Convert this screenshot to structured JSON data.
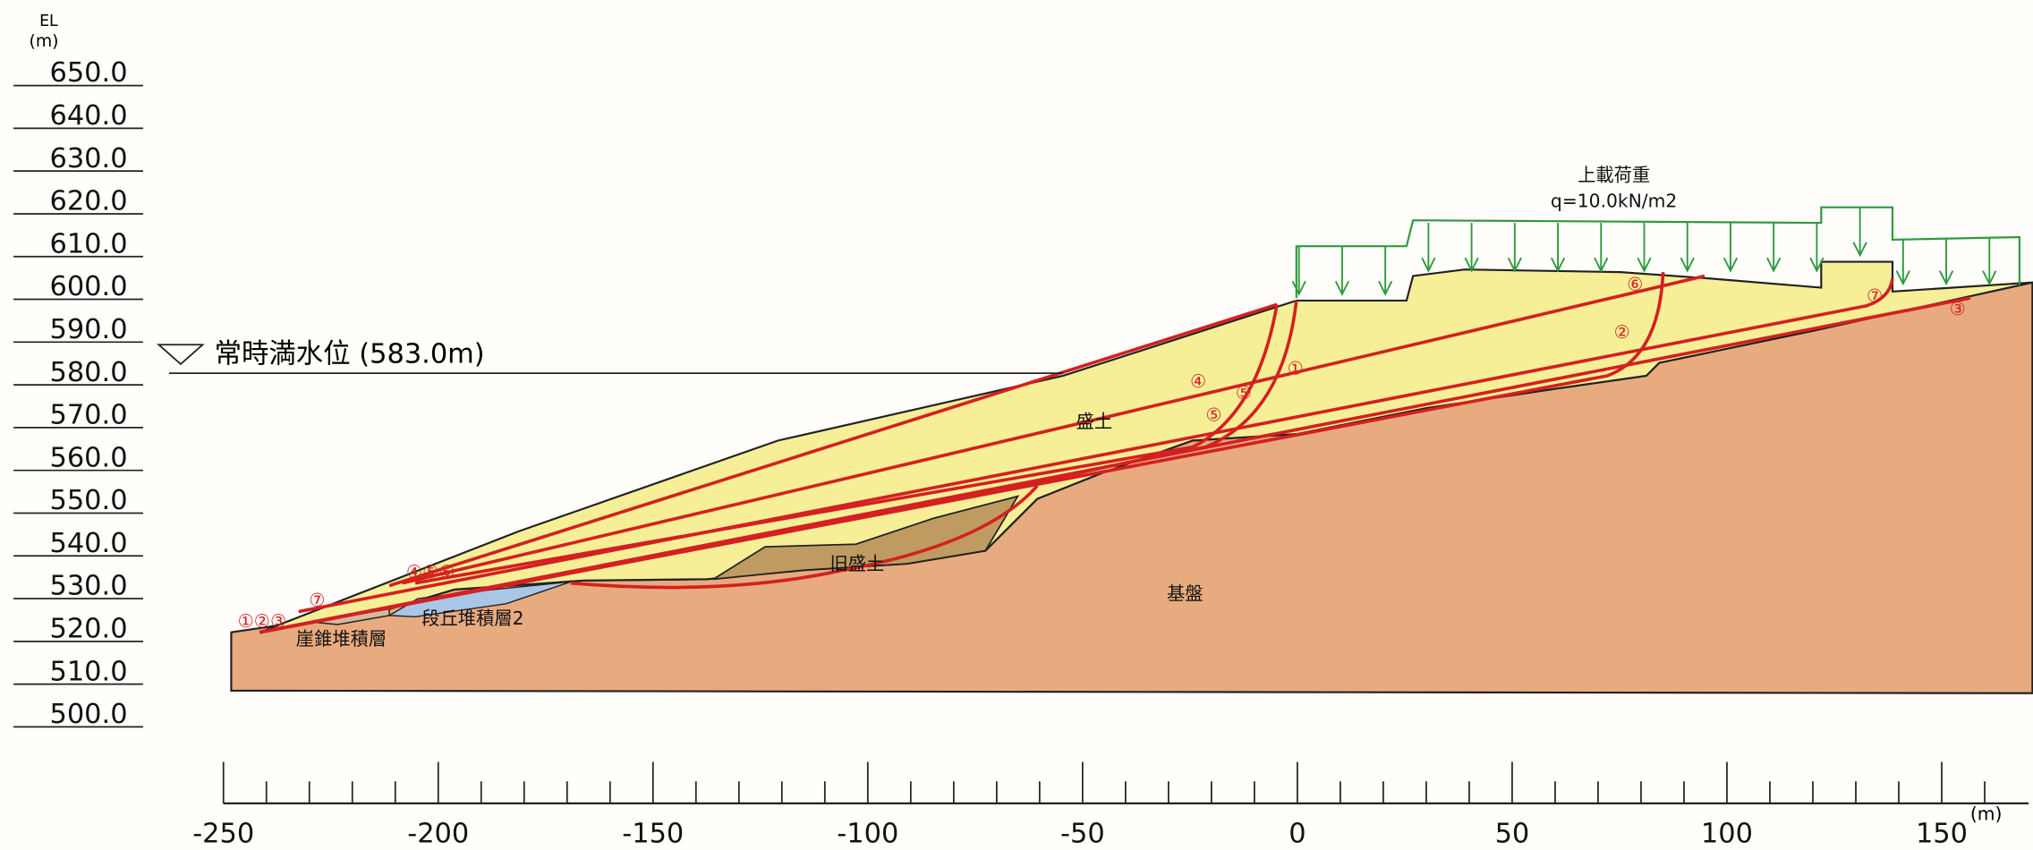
{
  "axis": {
    "y_title": "EL",
    "y_unit": "(m)",
    "y_ticks": [
      "650.0",
      "640.0",
      "630.0",
      "620.0",
      "610.0",
      "600.0",
      "590.0",
      "580.0",
      "570.0",
      "560.0",
      "550.0",
      "540.0",
      "530.0",
      "520.0",
      "510.0",
      "500.0"
    ],
    "x_ticks": [
      "-250",
      "-200",
      "-150",
      "-100",
      "-50",
      "0",
      "50",
      "100",
      "150"
    ],
    "x_unit": "(m)"
  },
  "water_level": "常時満水位 (583.0m)",
  "load": {
    "title": "上載荷重",
    "value": "q=10.0kN/m2"
  },
  "layers": {
    "fill": "盛土",
    "old_fill": "旧盛土",
    "bedrock": "基盤",
    "talus": "崖錐堆積層",
    "terrace": "段丘堆積層2"
  },
  "slip_labels": [
    "①②③",
    "⑦",
    "④⑤⑥",
    "④",
    "⑤",
    "⑤",
    "①",
    "⑥",
    "②",
    "⑦",
    "③"
  ]
}
